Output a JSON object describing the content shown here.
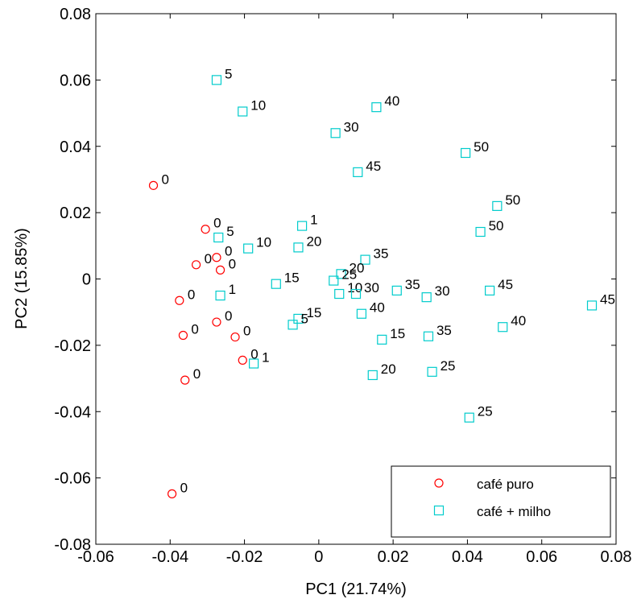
{
  "chart_data": {
    "type": "scatter",
    "title": "",
    "xlabel": "PC1 (21.74%)",
    "ylabel": "PC2 (15.85%)",
    "xlim": [
      -0.06,
      0.08
    ],
    "ylim": [
      -0.08,
      0.08
    ],
    "xticks": [
      -0.06,
      -0.04,
      -0.02,
      0,
      0.02,
      0.04,
      0.06,
      0.08
    ],
    "xtick_labels": [
      "-0.06",
      "-0.04",
      "-0.02",
      "0",
      "0.02",
      "0.04",
      "0.06",
      "0.08"
    ],
    "yticks": [
      -0.08,
      -0.06,
      -0.04,
      -0.02,
      0,
      0.02,
      0.04,
      0.06,
      0.08
    ],
    "ytick_labels": [
      "-0.08",
      "-0.06",
      "-0.04",
      "-0.02",
      "0",
      "0.02",
      "0.04",
      "0.06",
      "0.08"
    ],
    "grid": false,
    "legend_position": "bottom-right",
    "series": [
      {
        "name": "café puro",
        "marker": "circle",
        "color": "#ff0000",
        "points": [
          {
            "x": -0.0445,
            "y": 0.0282,
            "label": "0"
          },
          {
            "x": -0.0305,
            "y": 0.015,
            "label": "0"
          },
          {
            "x": -0.0275,
            "y": 0.0065,
            "label": "0"
          },
          {
            "x": -0.033,
            "y": 0.0043,
            "label": "0"
          },
          {
            "x": -0.0265,
            "y": 0.0027,
            "label": "0"
          },
          {
            "x": -0.0375,
            "y": -0.0065,
            "label": "0"
          },
          {
            "x": -0.0275,
            "y": -0.013,
            "label": "0"
          },
          {
            "x": -0.0365,
            "y": -0.017,
            "label": "0"
          },
          {
            "x": -0.0225,
            "y": -0.0175,
            "label": "0"
          },
          {
            "x": -0.0205,
            "y": -0.0245,
            "label": "0"
          },
          {
            "x": -0.036,
            "y": -0.0305,
            "label": "0"
          },
          {
            "x": -0.0395,
            "y": -0.0648,
            "label": "0"
          }
        ]
      },
      {
        "name": "café + milho",
        "marker": "square",
        "color": "#00cccc",
        "points": [
          {
            "x": -0.0275,
            "y": 0.06,
            "label": "5"
          },
          {
            "x": -0.0205,
            "y": 0.0505,
            "label": "10"
          },
          {
            "x": 0.0155,
            "y": 0.0518,
            "label": "40"
          },
          {
            "x": 0.0045,
            "y": 0.044,
            "label": "30"
          },
          {
            "x": 0.0395,
            "y": 0.038,
            "label": "50"
          },
          {
            "x": 0.0105,
            "y": 0.0322,
            "label": "45"
          },
          {
            "x": 0.048,
            "y": 0.022,
            "label": "50"
          },
          {
            "x": 0.0435,
            "y": 0.0142,
            "label": "50"
          },
          {
            "x": -0.0045,
            "y": 0.016,
            "label": "1"
          },
          {
            "x": -0.027,
            "y": 0.0125,
            "label": "5"
          },
          {
            "x": -0.019,
            "y": 0.0092,
            "label": "10"
          },
          {
            "x": -0.0055,
            "y": 0.0095,
            "label": "20"
          },
          {
            "x": 0.0125,
            "y": 0.0058,
            "label": "35"
          },
          {
            "x": 0.006,
            "y": 0.0015,
            "label": "20"
          },
          {
            "x": 0.004,
            "y": -0.0005,
            "label": "25"
          },
          {
            "x": -0.0115,
            "y": -0.0015,
            "label": "15"
          },
          {
            "x": 0.0055,
            "y": -0.0045,
            "label": "10"
          },
          {
            "x": 0.01,
            "y": -0.0045,
            "label": "30"
          },
          {
            "x": 0.021,
            "y": -0.0035,
            "label": "35"
          },
          {
            "x": 0.029,
            "y": -0.0055,
            "label": "30"
          },
          {
            "x": 0.046,
            "y": -0.0035,
            "label": "45"
          },
          {
            "x": 0.0735,
            "y": -0.008,
            "label": "45"
          },
          {
            "x": -0.0265,
            "y": -0.005,
            "label": "1"
          },
          {
            "x": 0.0115,
            "y": -0.0105,
            "label": "40"
          },
          {
            "x": -0.0055,
            "y": -0.012,
            "label": "15"
          },
          {
            "x": -0.007,
            "y": -0.0138,
            "label": "5"
          },
          {
            "x": 0.0495,
            "y": -0.0145,
            "label": "40"
          },
          {
            "x": 0.017,
            "y": -0.0183,
            "label": "15"
          },
          {
            "x": 0.0295,
            "y": -0.0173,
            "label": "35"
          },
          {
            "x": -0.0175,
            "y": -0.0255,
            "label": "1"
          },
          {
            "x": 0.0145,
            "y": -0.029,
            "label": "20"
          },
          {
            "x": 0.0305,
            "y": -0.028,
            "label": "25"
          },
          {
            "x": 0.0405,
            "y": -0.0418,
            "label": "25"
          }
        ]
      }
    ]
  }
}
